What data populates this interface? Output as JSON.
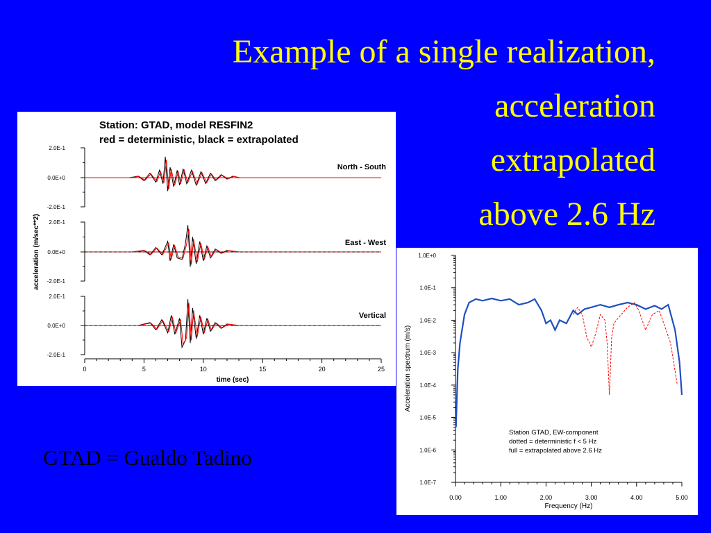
{
  "slide": {
    "title_lines": [
      "Example of a single realization,",
      "acceleration",
      "extrapolated",
      "above 2.6 Hz"
    ],
    "caption": "GTAD = Gualdo Tadino"
  },
  "colors": {
    "background": "#0000ff",
    "title": "#ffff00",
    "deterministic": "#ff0000",
    "extrapolated": "#000000",
    "spectrum_full": "#1f4fbf"
  },
  "chart_data": [
    {
      "type": "line",
      "header_lines": [
        "Station: GTAD, model RESFIN2",
        "red = deterministic,  black = extrapolated"
      ],
      "xlabel": "time (sec)",
      "ylabel": "acceleration (m/sec**2)",
      "xlim": [
        0,
        25
      ],
      "x_ticks": [
        "0",
        "5",
        "10",
        "15",
        "20",
        "25"
      ],
      "y_ticks": [
        "2.0E-1",
        "0.0E+0",
        "-2.0E-1"
      ],
      "ylim": [
        -0.2,
        0.2
      ],
      "series_style": {
        "deterministic": "red",
        "extrapolated": "black"
      },
      "panels": [
        {
          "label": "North - South",
          "x": [
            3.8,
            4.5,
            5.0,
            5.5,
            6.0,
            6.3,
            6.6,
            6.8,
            7.0,
            7.2,
            7.5,
            7.8,
            8.0,
            8.3,
            8.6,
            9.0,
            9.4,
            9.8,
            10.2,
            10.6,
            11.0,
            11.5,
            12.0,
            12.5,
            13.0,
            14.0
          ],
          "y": [
            0.0,
            0.01,
            -0.02,
            0.03,
            -0.03,
            0.05,
            -0.04,
            0.14,
            -0.09,
            0.07,
            -0.06,
            0.05,
            -0.05,
            0.06,
            -0.04,
            0.05,
            -0.05,
            0.04,
            -0.04,
            0.03,
            -0.02,
            0.02,
            -0.01,
            0.01,
            0.0,
            0.0
          ]
        },
        {
          "label": "East - West",
          "x": [
            4.0,
            5.0,
            5.5,
            6.0,
            6.5,
            7.0,
            7.2,
            7.5,
            7.8,
            8.2,
            8.5,
            8.7,
            8.9,
            9.1,
            9.4,
            9.7,
            10.0,
            10.3,
            10.6,
            11.0,
            11.5,
            12.0,
            13.0
          ],
          "y": [
            0.0,
            0.01,
            -0.02,
            0.03,
            -0.02,
            0.07,
            -0.06,
            0.05,
            -0.04,
            -0.05,
            0.06,
            0.18,
            -0.1,
            0.1,
            -0.08,
            0.07,
            -0.06,
            0.04,
            -0.04,
            0.02,
            -0.01,
            0.01,
            0.0
          ]
        },
        {
          "label": "Vertical",
          "x": [
            4.5,
            5.5,
            6.0,
            6.5,
            7.0,
            7.3,
            7.6,
            8.0,
            8.2,
            8.5,
            8.7,
            8.9,
            9.1,
            9.4,
            9.7,
            10.0,
            10.3,
            10.6,
            11.0,
            11.5,
            12.0,
            13.0
          ],
          "y": [
            0.0,
            0.02,
            -0.03,
            0.04,
            -0.05,
            0.07,
            -0.06,
            0.05,
            -0.15,
            -0.1,
            0.18,
            -0.12,
            0.12,
            -0.09,
            0.07,
            -0.06,
            0.05,
            -0.04,
            0.02,
            -0.02,
            0.01,
            0.0
          ]
        }
      ]
    },
    {
      "type": "line",
      "xlabel": "Frequency (Hz)",
      "ylabel": "Acceleration spectrum (m/s)",
      "xlim": [
        0,
        5
      ],
      "x_ticks": [
        "0.00",
        "1.00",
        "2.00",
        "3.00",
        "4.00",
        "5.00"
      ],
      "y_scale": "log",
      "ylim": [
        1e-07,
        1
      ],
      "y_ticks": [
        "1.0E+0",
        "1.0E-1",
        "1.0E-2",
        "1.0E-3",
        "1.0E-4",
        "1.0E-5",
        "1.0E-6",
        "1.0E-7"
      ],
      "legend_lines": [
        "Station GTAD, EW-component",
        "dotted = deterministic f < 5 Hz",
        "full = extrapolated above 2.6 Hz"
      ],
      "legend_position": "bottom-right",
      "series": [
        {
          "style": "full",
          "x": [
            0.01,
            0.05,
            0.1,
            0.2,
            0.3,
            0.45,
            0.6,
            0.8,
            1.0,
            1.2,
            1.4,
            1.6,
            1.75,
            1.9,
            2.0,
            2.1,
            2.2,
            2.3,
            2.45,
            2.6,
            2.7,
            2.85,
            3.0,
            3.2,
            3.4,
            3.6,
            3.8,
            4.0,
            4.2,
            4.4,
            4.55,
            4.7,
            4.85,
            4.95,
            5.0
          ],
          "y": [
            5e-06,
            0.0003,
            0.002,
            0.015,
            0.035,
            0.045,
            0.04,
            0.047,
            0.04,
            0.045,
            0.03,
            0.035,
            0.045,
            0.02,
            0.008,
            0.01,
            0.005,
            0.01,
            0.008,
            0.02,
            0.015,
            0.022,
            0.025,
            0.03,
            0.025,
            0.03,
            0.035,
            0.03,
            0.022,
            0.028,
            0.022,
            0.03,
            0.005,
            0.0005,
            5e-05
          ]
        },
        {
          "style": "dotted",
          "x": [
            2.6,
            2.7,
            2.8,
            2.9,
            3.0,
            3.1,
            3.2,
            3.3,
            3.35,
            3.4,
            3.45,
            3.5,
            3.6,
            3.8,
            3.95,
            4.05,
            4.2,
            4.35,
            4.5,
            4.6,
            4.75,
            4.9
          ],
          "y": [
            0.015,
            0.025,
            0.015,
            0.003,
            0.0015,
            0.004,
            0.015,
            0.01,
            0.002,
            5e-05,
            0.003,
            0.008,
            0.012,
            0.025,
            0.035,
            0.02,
            0.005,
            0.015,
            0.02,
            0.008,
            0.002,
            0.0001
          ]
        }
      ]
    }
  ]
}
